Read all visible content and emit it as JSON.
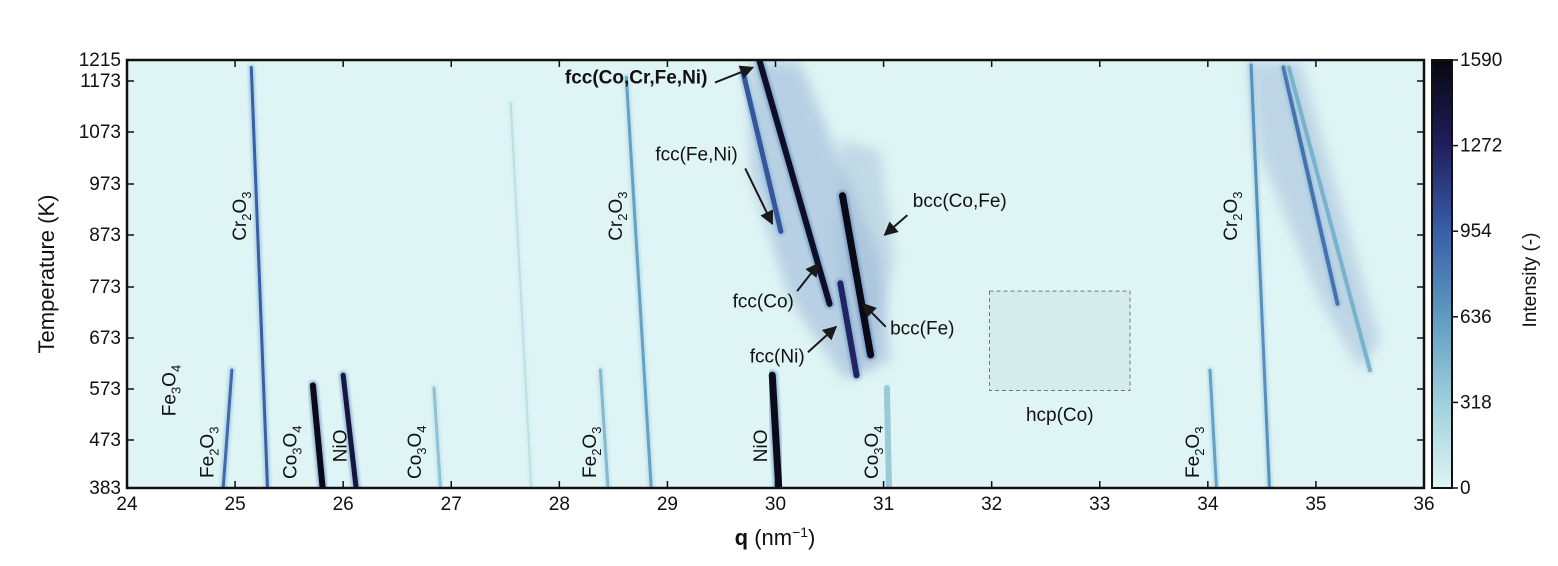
{
  "chart_data": {
    "type": "heatmap",
    "title": "",
    "xlabel": {
      "bold": "q",
      "rest": " (nm",
      "sup": "−1",
      "close": ")"
    },
    "ylabel": "Temperature (K)",
    "xlim": [
      24,
      36
    ],
    "ylim": [
      383,
      1215
    ],
    "xticks": [
      24,
      25,
      26,
      27,
      28,
      29,
      30,
      31,
      32,
      33,
      34,
      35,
      36
    ],
    "yticks": [
      383,
      473,
      573,
      673,
      773,
      873,
      973,
      1073,
      1173,
      1215
    ],
    "colorbar": {
      "label": "Intensity (-)",
      "range": [
        0,
        1590
      ],
      "ticks": [
        0,
        318,
        636,
        954,
        1272,
        1590
      ],
      "colors": [
        "#dff4f4",
        "#9fcfdc",
        "#5e9bc2",
        "#3a5ea8",
        "#201f5e",
        "#070710"
      ]
    },
    "traces": [
      {
        "q": [
          24.89,
          24.97
        ],
        "T": [
          383,
          610
        ],
        "intensity": 900,
        "width": 3
      },
      {
        "q": [
          25.3,
          25.15
        ],
        "T": [
          383,
          1200
        ],
        "intensity": 950,
        "width": 3
      },
      {
        "q": [
          25.81,
          25.72
        ],
        "T": [
          383,
          580
        ],
        "intensity": 1550,
        "width": 6
      },
      {
        "q": [
          26.12,
          26.0
        ],
        "T": [
          383,
          600
        ],
        "intensity": 1400,
        "width": 5
      },
      {
        "q": [
          26.9,
          26.84
        ],
        "T": [
          383,
          575
        ],
        "intensity": 400,
        "width": 3
      },
      {
        "q": [
          27.74,
          27.55
        ],
        "T": [
          383,
          1130
        ],
        "intensity": 180,
        "width": 2
      },
      {
        "q": [
          28.45,
          28.38
        ],
        "T": [
          383,
          610
        ],
        "intensity": 450,
        "width": 3
      },
      {
        "q": [
          28.85,
          28.62
        ],
        "T": [
          383,
          1180
        ],
        "intensity": 600,
        "width": 3
      },
      {
        "q": [
          30.03,
          29.97
        ],
        "T": [
          383,
          600
        ],
        "intensity": 1550,
        "width": 7
      },
      {
        "q": [
          31.05,
          31.03
        ],
        "T": [
          383,
          575
        ],
        "intensity": 350,
        "width": 6
      },
      {
        "q": [
          34.08,
          34.02
        ],
        "T": [
          383,
          610
        ],
        "intensity": 600,
        "width": 3
      },
      {
        "q": [
          34.57,
          34.4
        ],
        "T": [
          383,
          1205
        ],
        "intensity": 700,
        "width": 3
      },
      {
        "q": [
          30.5,
          29.85
        ],
        "T": [
          740,
          1215
        ],
        "intensity": 1500,
        "width": 6
      },
      {
        "q": [
          30.88,
          30.62
        ],
        "T": [
          640,
          950
        ],
        "intensity": 1560,
        "width": 7
      },
      {
        "q": [
          30.75,
          30.6
        ],
        "T": [
          600,
          780
        ],
        "intensity": 1250,
        "width": 6
      },
      {
        "q": [
          30.05,
          29.7
        ],
        "T": [
          880,
          1190
        ],
        "intensity": 1000,
        "width": 5
      },
      {
        "q": [
          35.2,
          34.7
        ],
        "T": [
          740,
          1200
        ],
        "intensity": 850,
        "width": 4
      },
      {
        "q": [
          35.5,
          34.75
        ],
        "T": [
          610,
          1200
        ],
        "intensity": 500,
        "width": 4
      }
    ],
    "labels": [
      {
        "text": "Cr",
        "sub": "2",
        "text2": "O",
        "sub2": "3",
        "q": 25.1,
        "T": 910,
        "rotate": true
      },
      {
        "text": "Fe",
        "sub": "3",
        "text2": "O",
        "sub2": "4",
        "q": 24.45,
        "T": 570,
        "rotate": true
      },
      {
        "text": "Fe",
        "sub": "2",
        "text2": "O",
        "sub2": "3",
        "q": 24.8,
        "T": 450,
        "rotate": true
      },
      {
        "text": "Co",
        "sub": "3",
        "text2": "O",
        "sub2": "4",
        "q": 25.57,
        "T": 450,
        "rotate": true
      },
      {
        "text": "NiO",
        "sub": "",
        "text2": "",
        "sub2": "",
        "q": 26.03,
        "T": 462,
        "rotate": true
      },
      {
        "text": "Co",
        "sub": "3",
        "text2": "O",
        "sub2": "4",
        "q": 26.72,
        "T": 450,
        "rotate": true
      },
      {
        "text": "Fe",
        "sub": "2",
        "text2": "O",
        "sub2": "3",
        "q": 28.34,
        "T": 450,
        "rotate": true
      },
      {
        "text": "Cr",
        "sub": "2",
        "text2": "O",
        "sub2": "3",
        "q": 28.58,
        "T": 910,
        "rotate": true
      },
      {
        "text": "NiO",
        "sub": "",
        "text2": "",
        "sub2": "",
        "q": 29.92,
        "T": 462,
        "rotate": true
      },
      {
        "text": "Co",
        "sub": "3",
        "text2": "O",
        "sub2": "4",
        "q": 30.95,
        "T": 450,
        "rotate": true
      },
      {
        "text": "Fe",
        "sub": "2",
        "text2": "O",
        "sub2": "3",
        "q": 33.92,
        "T": 450,
        "rotate": true
      },
      {
        "text": "Cr",
        "sub": "2",
        "text2": "O",
        "sub2": "3",
        "q": 34.27,
        "T": 910,
        "rotate": true
      }
    ],
    "annotations": [
      {
        "text": "fcc(Co,Cr,Fe,Ni)",
        "bold": true,
        "q": 29.37,
        "T": 1168,
        "anchor": "end",
        "arrow_from": [
          29.44,
          1170
        ],
        "arrow_to": [
          29.79,
          1200
        ]
      },
      {
        "text": "fcc(Fe,Ni)",
        "bold": false,
        "q": 29.65,
        "T": 1018,
        "anchor": "end",
        "arrow_from": [
          29.72,
          1003
        ],
        "arrow_to": [
          29.97,
          895
        ]
      },
      {
        "text": "bcc(Co,Fe)",
        "bold": false,
        "q": 31.27,
        "T": 928,
        "anchor": "start",
        "arrow_from": [
          31.22,
          912
        ],
        "arrow_to": [
          31.01,
          873
        ]
      },
      {
        "text": "fcc(Co)",
        "bold": false,
        "q": 30.17,
        "T": 733,
        "anchor": "end",
        "arrow_from": [
          30.2,
          765
        ],
        "arrow_to": [
          30.4,
          818
        ]
      },
      {
        "text": "bcc(Fe)",
        "bold": false,
        "q": 31.06,
        "T": 680,
        "anchor": "start",
        "arrow_from": [
          31.02,
          695
        ],
        "arrow_to": [
          30.81,
          740
        ]
      },
      {
        "text": "fcc(Ni)",
        "bold": false,
        "q": 30.27,
        "T": 625,
        "anchor": "end",
        "arrow_from": [
          30.3,
          645
        ],
        "arrow_to": [
          30.56,
          695
        ]
      },
      {
        "text": "hcp(Co)",
        "bold": false,
        "q": 32.63,
        "T": 510,
        "anchor": "middle",
        "arrow_from": null,
        "arrow_to": null
      }
    ],
    "hcp_box": {
      "q": [
        31.98,
        33.28
      ],
      "T": [
        570,
        765
      ]
    }
  }
}
